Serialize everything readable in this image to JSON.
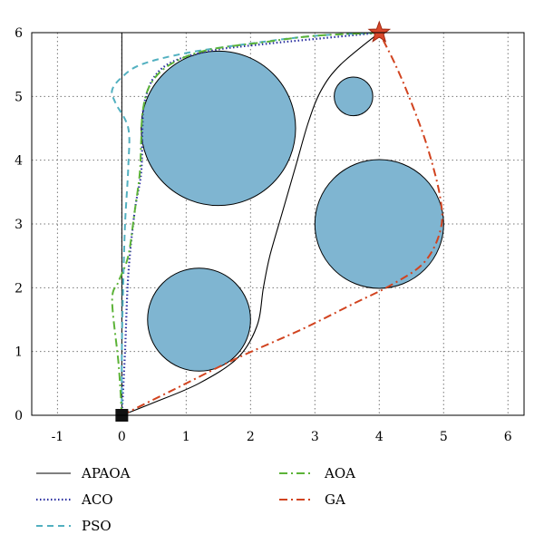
{
  "chart_data": {
    "type": "line",
    "title": "",
    "xlabel": "",
    "ylabel": "",
    "xlim": [
      -1.4,
      6.25
    ],
    "ylim": [
      0,
      6
    ],
    "xticks": [
      -1,
      0,
      1,
      2,
      3,
      4,
      5,
      6
    ],
    "yticks": [
      0,
      1,
      2,
      3,
      4,
      5,
      6
    ],
    "grid": true,
    "legend_position": "bottom",
    "start": {
      "x": 0,
      "y": 0,
      "marker": "square",
      "color": "#111111"
    },
    "goal": {
      "x": 4,
      "y": 6,
      "marker": "star",
      "color": "#d9482b"
    },
    "obstacles": [
      {
        "cx": 1.5,
        "cy": 4.5,
        "r": 1.2
      },
      {
        "cx": 3.6,
        "cy": 5.0,
        "r": 0.3
      },
      {
        "cx": 4.0,
        "cy": 3.0,
        "r": 1.0
      },
      {
        "cx": 1.2,
        "cy": 1.5,
        "r": 0.8
      }
    ],
    "obstacle_color": "#7fb5d1",
    "series": [
      {
        "name": "APAOA",
        "color": "#000000",
        "dash": "",
        "width": 1.1,
        "points": [
          [
            0,
            0
          ],
          [
            0.5,
            0.2
          ],
          [
            1.2,
            0.5
          ],
          [
            1.8,
            0.9
          ],
          [
            2.1,
            1.4
          ],
          [
            2.2,
            2.0
          ],
          [
            2.3,
            2.5
          ],
          [
            2.5,
            3.2
          ],
          [
            2.7,
            3.9
          ],
          [
            2.9,
            4.6
          ],
          [
            3.1,
            5.1
          ],
          [
            3.4,
            5.5
          ],
          [
            4,
            6
          ]
        ]
      },
      {
        "name": "ACO",
        "color": "#2a2fa0",
        "dash": "1.5,2.5",
        "width": 2.2,
        "points": [
          [
            0,
            0
          ],
          [
            0.05,
            1.0
          ],
          [
            0.1,
            2.2
          ],
          [
            0.2,
            3.2
          ],
          [
            0.3,
            3.8
          ],
          [
            0.32,
            4.5
          ],
          [
            0.35,
            4.9
          ],
          [
            0.5,
            5.3
          ],
          [
            0.8,
            5.55
          ],
          [
            1.4,
            5.72
          ],
          [
            2.2,
            5.82
          ],
          [
            3.0,
            5.9
          ],
          [
            4,
            6
          ]
        ]
      },
      {
        "name": "PSO",
        "color": "#52b0c0",
        "dash": "7,5",
        "width": 2.0,
        "points": [
          [
            0,
            0
          ],
          [
            0,
            1.0
          ],
          [
            0.02,
            2.0
          ],
          [
            0.05,
            3.0
          ],
          [
            0.1,
            3.9
          ],
          [
            0.1,
            4.5
          ],
          [
            -0.1,
            4.9
          ],
          [
            -0.15,
            5.1
          ],
          [
            0,
            5.3
          ],
          [
            0.3,
            5.5
          ],
          [
            1.0,
            5.68
          ],
          [
            2.0,
            5.83
          ],
          [
            3.0,
            5.95
          ],
          [
            4,
            6
          ]
        ]
      },
      {
        "name": "AOA",
        "color": "#5cb338",
        "dash": "9,4,2,4",
        "width": 2.0,
        "points": [
          [
            0,
            0
          ],
          [
            -0.05,
            0.8
          ],
          [
            -0.15,
            1.8
          ],
          [
            -0.05,
            2.1
          ],
          [
            0.1,
            2.5
          ],
          [
            0.2,
            3.2
          ],
          [
            0.28,
            3.8
          ],
          [
            0.3,
            4.3
          ],
          [
            0.33,
            4.8
          ],
          [
            0.45,
            5.2
          ],
          [
            0.75,
            5.5
          ],
          [
            1.3,
            5.72
          ],
          [
            2.2,
            5.85
          ],
          [
            3.0,
            5.95
          ],
          [
            4,
            6
          ]
        ]
      },
      {
        "name": "GA",
        "color": "#d1431f",
        "dash": "9,4,2,4",
        "width": 2.0,
        "points": [
          [
            0,
            0
          ],
          [
            0.8,
            0.4
          ],
          [
            1.8,
            0.9
          ],
          [
            2.8,
            1.35
          ],
          [
            3.6,
            1.75
          ],
          [
            4.2,
            2.05
          ],
          [
            4.7,
            2.4
          ],
          [
            4.95,
            2.9
          ],
          [
            4.95,
            3.4
          ],
          [
            4.75,
            4.2
          ],
          [
            4.5,
            4.9
          ],
          [
            4.25,
            5.5
          ],
          [
            4,
            6
          ]
        ]
      }
    ]
  }
}
